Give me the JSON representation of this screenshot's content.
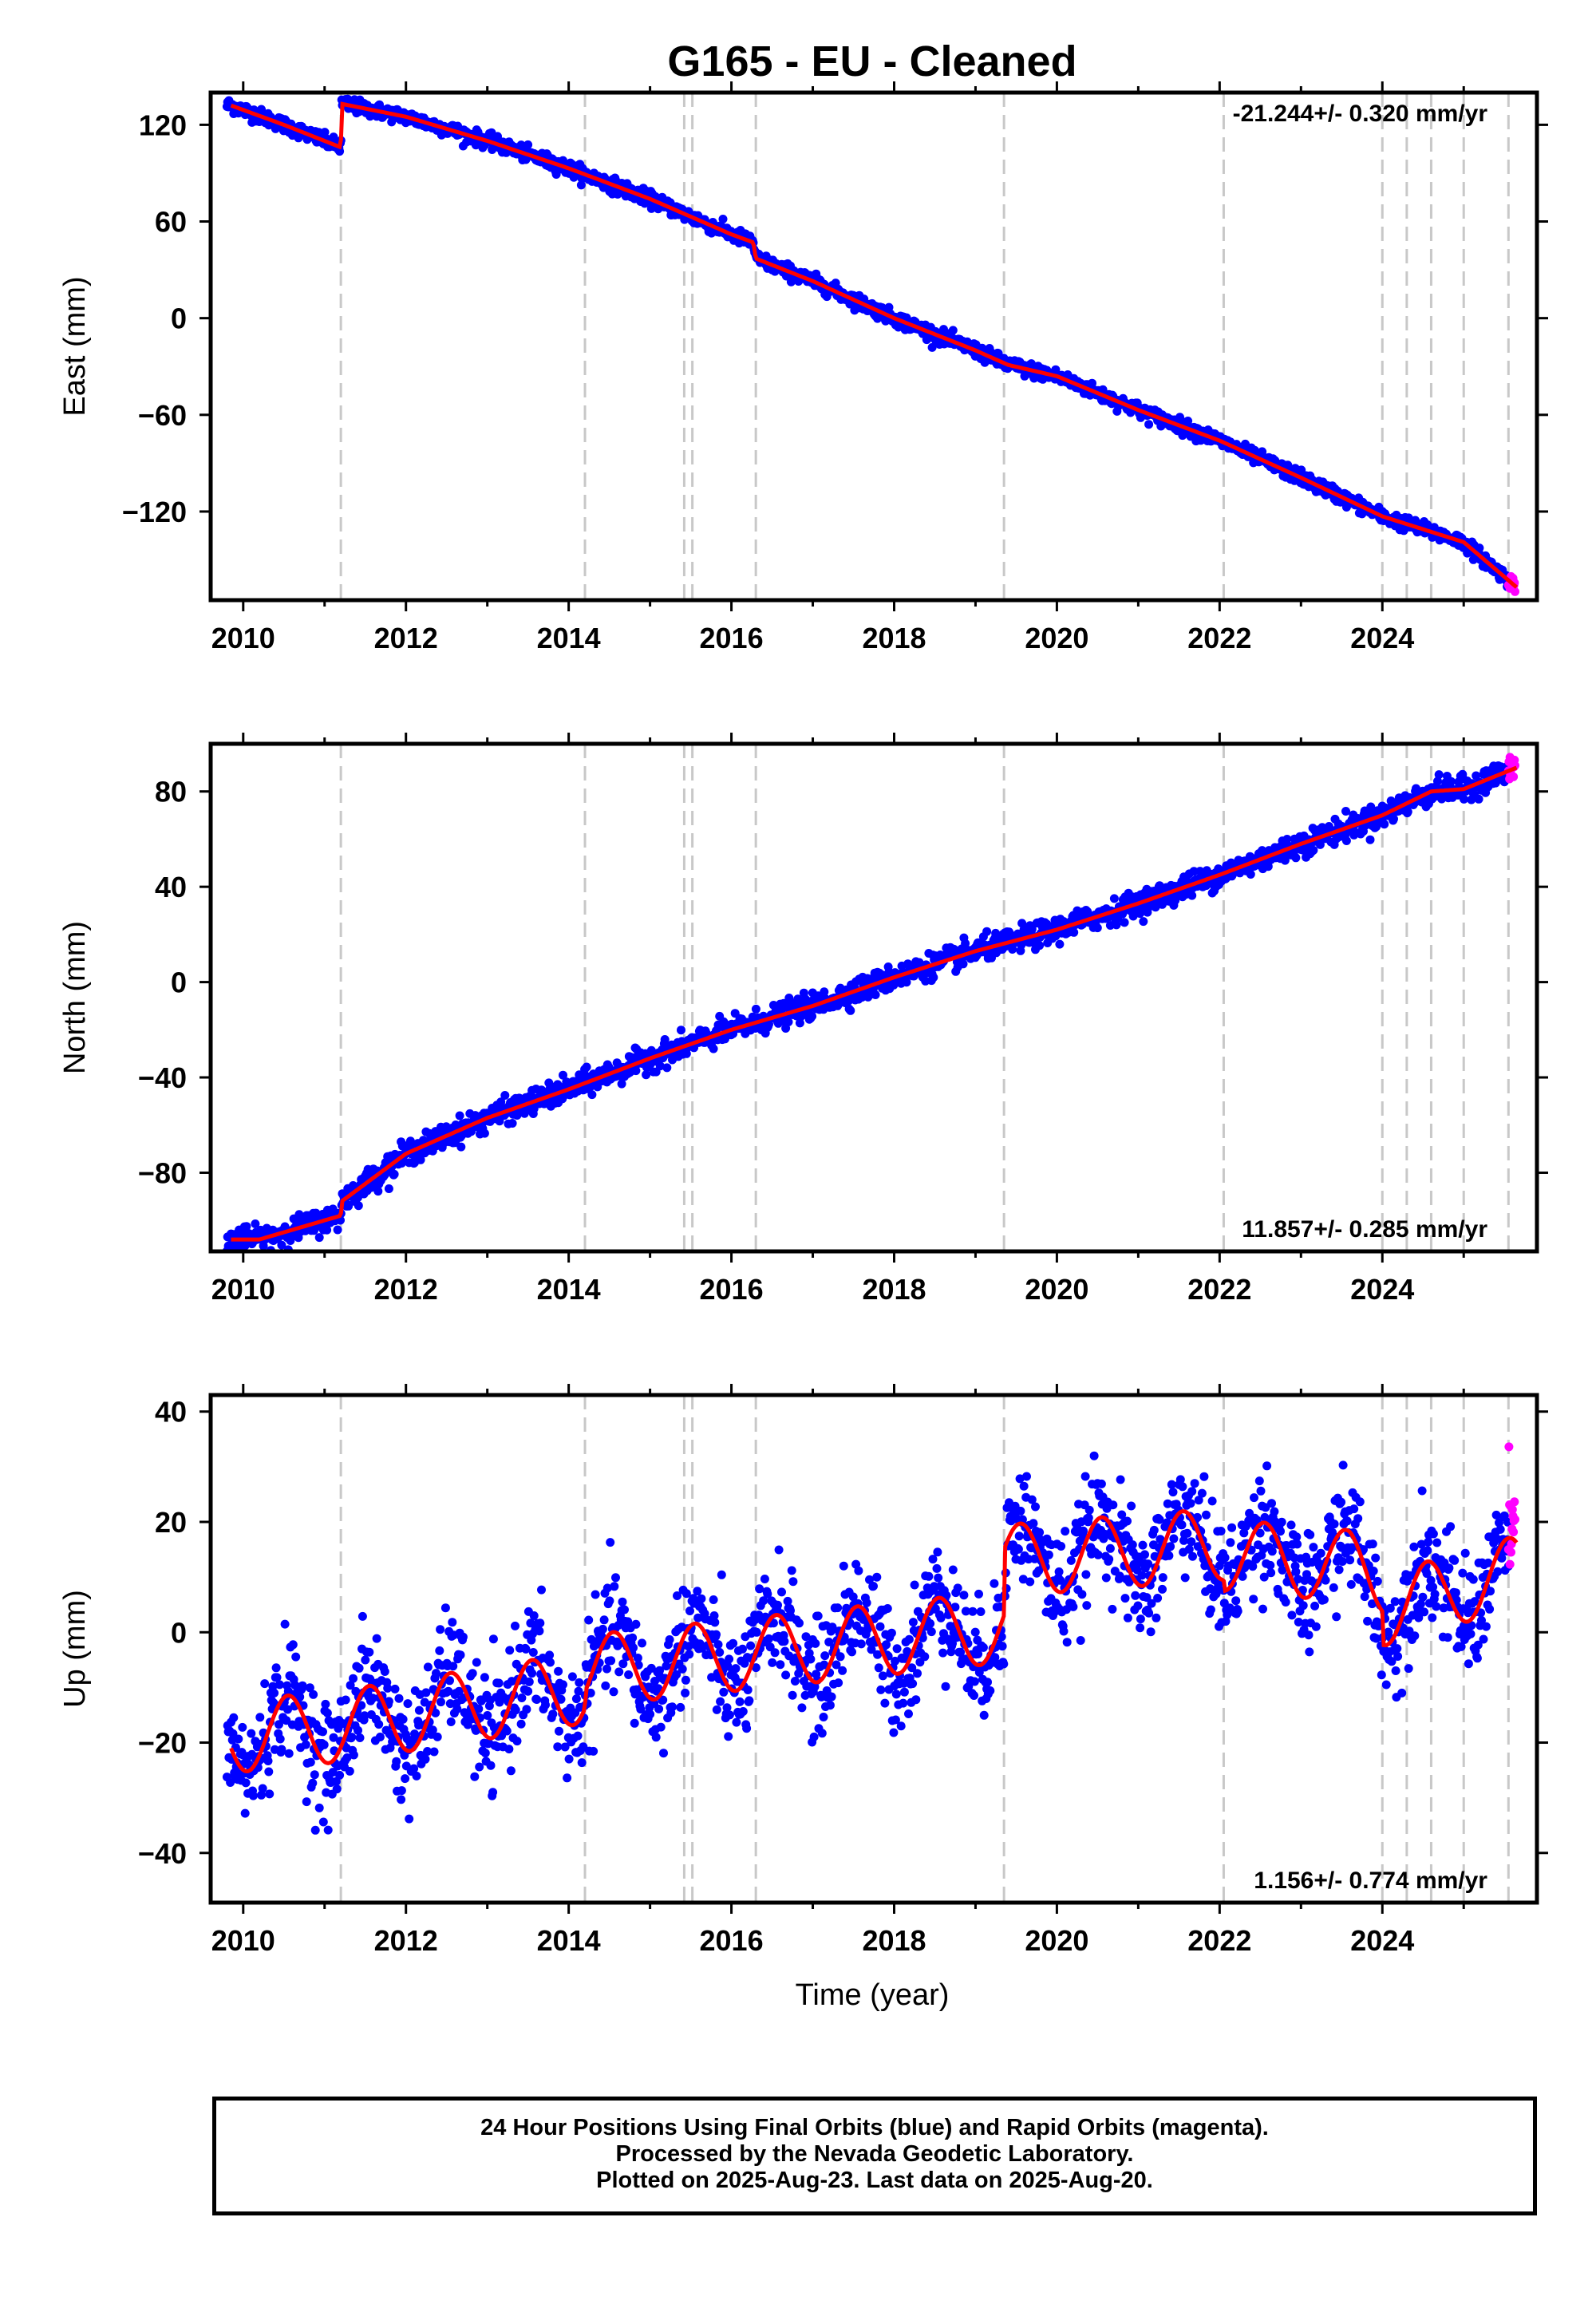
{
  "title": "G165  - EU - Cleaned",
  "colors": {
    "final": "#0000ff",
    "rapid": "#ff00ff",
    "model": "#ff0000",
    "steps": "#c8c8c8"
  },
  "footer": {
    "line1": "24 Hour Positions Using Final Orbits (blue) and Rapid Orbits (magenta).",
    "line2": "Processed by the Nevada Geodetic Laboratory.",
    "line3": "Plotted on 2025-Aug-23. Last data on 2025-Aug-20."
  },
  "chart_data": [
    {
      "type": "scatter",
      "name": "east",
      "ylabel": "East (mm)",
      "rate_label": "-21.244+/- 0.320 mm/yr",
      "rate_position": "top-right",
      "xlim": [
        2009.6,
        2025.9
      ],
      "ylim": [
        -175,
        140
      ],
      "xticks": [
        2010,
        2012,
        2014,
        2016,
        2018,
        2020,
        2022,
        2024
      ],
      "yticks": [
        120,
        60,
        0,
        -60,
        -120
      ],
      "ytick_labels": [
        "120",
        "60",
        "0",
        "−60",
        "−120"
      ],
      "model_trend": {
        "x": [
          2009.85,
          2010.5,
          2011.2,
          2011.21,
          2012,
          2013,
          2014,
          2015,
          2016,
          2016.27,
          2016.3,
          2017,
          2018,
          2019,
          2019.4,
          2020,
          2021,
          2022,
          2023,
          2024,
          2025,
          2025.65
        ],
        "y": [
          132,
          120,
          106,
          133,
          125,
          110,
          93,
          74,
          52,
          47,
          37,
          23,
          0,
          -20,
          -29,
          -36,
          -57,
          -76,
          -99,
          -123,
          -139,
          -167
        ]
      },
      "series": [
        {
          "name": "final",
          "color": "#0000ff",
          "x_range": [
            2009.8,
            2025.55
          ],
          "scatter_sd": 2.2
        },
        {
          "name": "rapid",
          "color": "#ff00ff",
          "x_range": [
            2025.55,
            2025.63
          ],
          "scatter_sd": 2.2
        }
      ]
    },
    {
      "type": "scatter",
      "name": "north",
      "ylabel": "North (mm)",
      "rate_label": "11.857+/- 0.285 mm/yr",
      "rate_position": "bottom-right",
      "xlim": [
        2009.6,
        2025.9
      ],
      "ylim": [
        -113,
        100
      ],
      "xticks": [
        2010,
        2012,
        2014,
        2016,
        2018,
        2020,
        2022,
        2024
      ],
      "yticks": [
        80,
        40,
        0,
        -40,
        -80
      ],
      "ytick_labels": [
        "80",
        "40",
        "0",
        "−40",
        "−80"
      ],
      "model_trend": {
        "x": [
          2009.85,
          2010.2,
          2011.2,
          2011.21,
          2012,
          2013,
          2014,
          2015,
          2016,
          2017,
          2018,
          2019,
          2020,
          2021,
          2022,
          2023,
          2024,
          2024.6,
          2025,
          2025.65
        ],
        "y": [
          -108,
          -108,
          -98,
          -92,
          -72,
          -57,
          -45,
          -32,
          -20,
          -10,
          2,
          13,
          22,
          33,
          45,
          58,
          70,
          80,
          81,
          90
        ]
      },
      "series": [
        {
          "name": "final",
          "color": "#0000ff",
          "x_range": [
            2009.8,
            2025.55
          ],
          "scatter_sd": 2.5
        },
        {
          "name": "rapid",
          "color": "#ff00ff",
          "x_range": [
            2025.55,
            2025.63
          ],
          "scatter_sd": 2.5
        }
      ]
    },
    {
      "type": "scatter",
      "name": "up",
      "ylabel": "Up (mm)",
      "xlabel": "Time (year)",
      "rate_label": "1.156+/- 0.774 mm/yr",
      "rate_position": "bottom-right",
      "xlim": [
        2009.6,
        2025.9
      ],
      "ylim": [
        -49,
        43
      ],
      "xticks": [
        2010,
        2012,
        2014,
        2016,
        2018,
        2020,
        2022,
        2024
      ],
      "yticks": [
        40,
        20,
        0,
        -20,
        -40
      ],
      "ytick_labels": [
        "40",
        "20",
        "0",
        "−20",
        "−40"
      ],
      "model_trend": {
        "x": [
          2009.85,
          2011.2,
          2011.21,
          2014.2,
          2014.21,
          2019.35,
          2019.36,
          2022.05,
          2022.06,
          2023.6,
          2024.0,
          2024.01,
          2025.65
        ],
        "y": [
          -19,
          -17,
          -17,
          -10,
          -7,
          1,
          13,
          16,
          14,
          12,
          10,
          4,
          11
        ]
      },
      "model_seasonal_amplitude": 6.5,
      "series": [
        {
          "name": "final",
          "color": "#0000ff",
          "x_range": [
            2009.8,
            2025.55
          ],
          "scatter_sd": 5
        },
        {
          "name": "rapid",
          "color": "#ff00ff",
          "x_range": [
            2025.55,
            2025.63
          ],
          "scatter_sd": 5
        }
      ]
    }
  ],
  "steps": [
    2011.2,
    2014.2,
    2015.42,
    2015.52,
    2016.3,
    2019.35,
    2022.05,
    2024.0,
    2024.3,
    2024.6,
    2025.0,
    2025.55
  ]
}
